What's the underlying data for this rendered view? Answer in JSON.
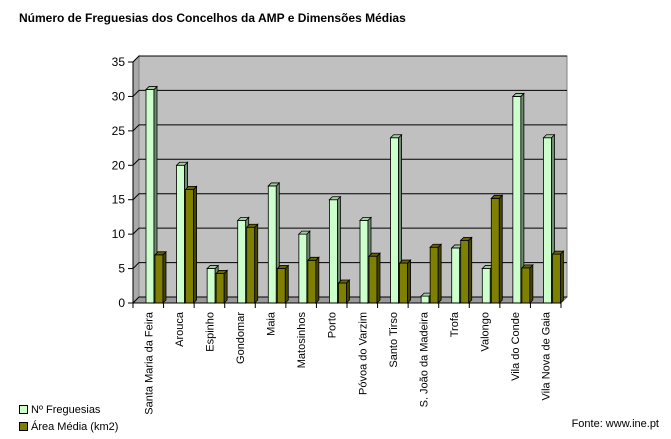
{
  "title": "Número de Freguesias dos Concelhos da AMP e Dimensões Médias",
  "source": "Fonte: www.ine.pt",
  "colors": {
    "plot_background": "#c0c0c0",
    "series1": "#ccffcc",
    "series2": "#808000"
  },
  "legend": [
    {
      "label": "Nº Freguesias",
      "color": "#ccffcc"
    },
    {
      "label": "Área Média (km2)",
      "color": "#808000"
    }
  ],
  "chart_data": {
    "type": "bar",
    "style": "3d-clustered-column",
    "categories": [
      "Santa Maria da Feira",
      "Arouca",
      "Espinho",
      "Gondomar",
      "Maia",
      "Matosinhos",
      "Porto",
      "Póvoa do Varzim",
      "Santo Tirso",
      "S. João da Madeira",
      "Trofa",
      "Valongo",
      "Vila do Conde",
      "Vila Nova de Gaia"
    ],
    "series": [
      {
        "name": "Nº Freguesias",
        "values": [
          31,
          20,
          5,
          12,
          17,
          10,
          15,
          12,
          24,
          1,
          8,
          5,
          30,
          24
        ]
      },
      {
        "name": "Área Média (km2)",
        "values": [
          7,
          16.5,
          4.3,
          11,
          5,
          6.2,
          2.9,
          6.8,
          5.8,
          8.1,
          9.1,
          15.2,
          5.1,
          7.1
        ]
      }
    ],
    "title": "Número de Freguesias dos Concelhos da AMP e Dimensões Médias",
    "xlabel": "",
    "ylabel": "",
    "ylim": [
      0,
      35
    ],
    "yticks": [
      0,
      5,
      10,
      15,
      20,
      25,
      30,
      35
    ],
    "grid": true,
    "legend_position": "bottom-left"
  }
}
